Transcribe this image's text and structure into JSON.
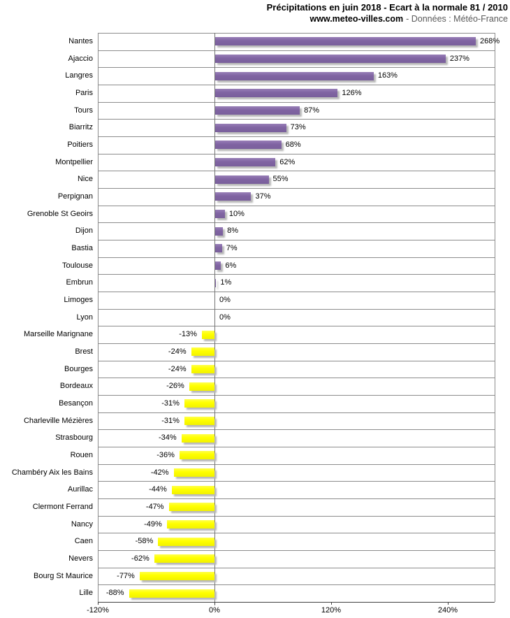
{
  "header": {
    "title": "Précipitations en juin 2018 - Ecart à la normale 81 / 2010",
    "source_site": "www.meteo-villes.com",
    "source_suffix": "- Données : Météo-France"
  },
  "chart_data": {
    "type": "bar",
    "orientation": "horizontal",
    "title": "Précipitations en juin 2018 - Ecart à la normale 81 / 2010",
    "subtitle": "www.meteo-villes.com - Données : Météo-France",
    "categories": [
      "Nantes",
      "Ajaccio",
      "Langres",
      "Paris",
      "Tours",
      "Biarritz",
      "Poitiers",
      "Montpellier",
      "Nice",
      "Perpignan",
      "Grenoble St Geoirs",
      "Dijon",
      "Bastia",
      "Toulouse",
      "Embrun",
      "Limoges",
      "Lyon",
      "Marseille Marignane",
      "Brest",
      "Bourges",
      "Bordeaux",
      "Besançon",
      "Charleville Mézières",
      "Strasbourg",
      "Rouen",
      "Chambéry Aix les Bains",
      "Aurillac",
      "Clermont Ferrand",
      "Nancy",
      "Caen",
      "Nevers",
      "Bourg St Maurice",
      "Lille"
    ],
    "values": [
      268,
      237,
      163,
      126,
      87,
      73,
      68,
      62,
      55,
      37,
      10,
      8,
      7,
      6,
      1,
      0,
      0,
      -13,
      -24,
      -24,
      -26,
      -31,
      -31,
      -34,
      -36,
      -42,
      -44,
      -47,
      -49,
      -58,
      -62,
      -77,
      -88
    ],
    "labels": [
      "268%",
      "237%",
      "163%",
      "126%",
      "87%",
      "73%",
      "68%",
      "62%",
      "55%",
      "37%",
      "10%",
      "8%",
      "7%",
      "6%",
      "1%",
      "0%",
      "0%",
      "-13%",
      "-24%",
      "-24%",
      "-26%",
      "-31%",
      "-31%",
      "-34%",
      "-36%",
      "-42%",
      "-44%",
      "-47%",
      "-49%",
      "-58%",
      "-62%",
      "-77%",
      "-88%"
    ],
    "x_ticks": [
      -120,
      0,
      120,
      240
    ],
    "x_tick_labels": [
      "-120%",
      "0%",
      "120%",
      "240%"
    ],
    "xlim": [
      -120,
      288
    ],
    "unit": "%",
    "grid": true,
    "legend": "none",
    "colors": {
      "positive_bar": "#8064A2",
      "negative_bar": "#FFFF00",
      "gridline": "#8c8c8c"
    }
  }
}
